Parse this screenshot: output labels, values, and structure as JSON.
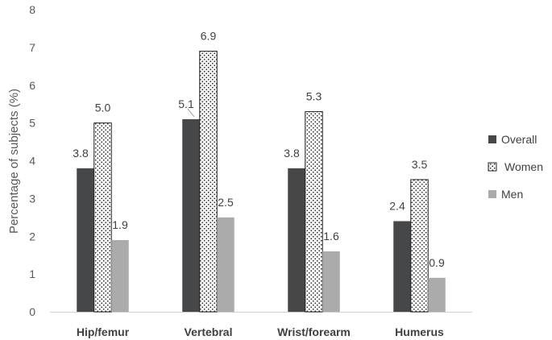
{
  "chart_data": {
    "type": "bar",
    "categories": [
      "Hip/femur",
      "Vertebral",
      "Wrist/forearm",
      "Humerus"
    ],
    "series": [
      {
        "name": "Overall",
        "values": [
          3.8,
          5.1,
          3.8,
          2.4
        ],
        "color": "#464749",
        "pattern": "solid"
      },
      {
        "name": "Women",
        "values": [
          5.0,
          6.9,
          5.3,
          3.5
        ],
        "color": "#ffffff",
        "pattern": "dots"
      },
      {
        "name": "Men",
        "values": [
          1.9,
          2.5,
          1.6,
          0.9
        ],
        "color": "#ababab",
        "pattern": "solid"
      }
    ],
    "data_labels": {
      "Overall": [
        "3.8",
        "5.1",
        "3.8",
        "2.4"
      ],
      "Women": [
        "5.0",
        "6.9",
        "5.3",
        "3.5"
      ],
      "Men": [
        "1.9",
        "2.5",
        "1.6",
        "0.9"
      ]
    },
    "ylabel": "Percentage of subjects (%)",
    "ylim": [
      0,
      8
    ],
    "yticks": [
      "0",
      "1",
      "2",
      "3",
      "4",
      "5",
      "6",
      "7",
      "8"
    ],
    "grid": false,
    "legend": "right"
  }
}
